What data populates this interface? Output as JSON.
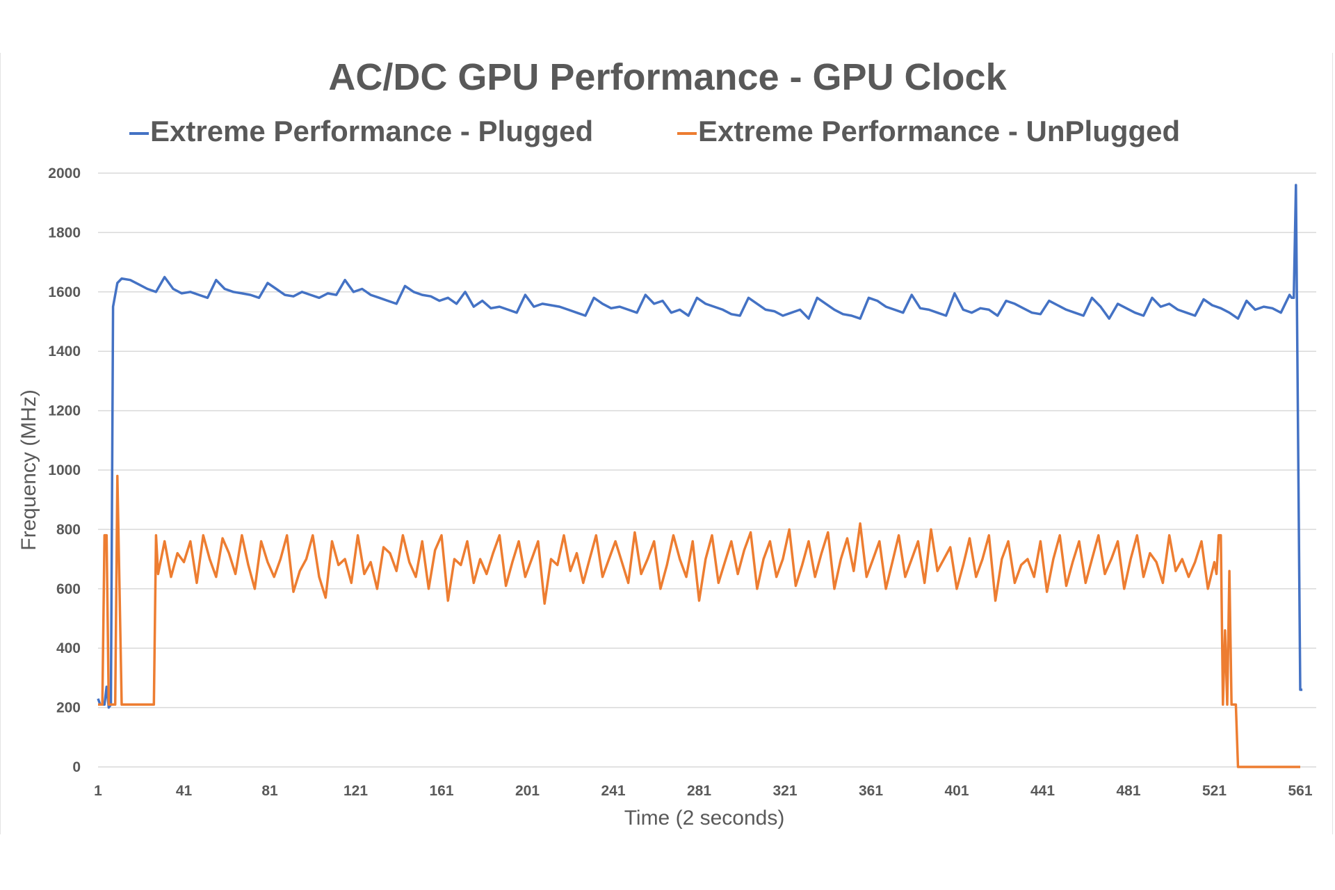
{
  "chart_data": {
    "type": "line",
    "title": "AC/DC GPU Performance - GPU Clock",
    "xlabel": "Time (2 seconds)",
    "ylabel": "Frequency (MHz)",
    "xlim": [
      1,
      562
    ],
    "ylim": [
      0,
      2000
    ],
    "y_ticks": [
      0,
      200,
      400,
      600,
      800,
      1000,
      1200,
      1400,
      1600,
      1800,
      2000
    ],
    "x_ticks": [
      1,
      41,
      81,
      121,
      161,
      201,
      241,
      281,
      321,
      361,
      401,
      441,
      481,
      521,
      561
    ],
    "grid": true,
    "legend_position": "top",
    "series": [
      {
        "name": "Extreme Performance - Plugged",
        "color": "#4472C4",
        "head": [
          [
            1,
            230
          ],
          [
            2,
            210
          ],
          [
            4,
            210
          ],
          [
            5,
            270
          ],
          [
            6,
            200
          ],
          [
            7,
            210
          ],
          [
            8,
            1550
          ],
          [
            10,
            1630
          ],
          [
            12,
            1645
          ]
        ],
        "sampled": {
          "x_start": 16,
          "x_step": 4,
          "values": [
            1640,
            1625,
            1610,
            1600,
            1650,
            1610,
            1595,
            1600,
            1590,
            1580,
            1640,
            1610,
            1600,
            1595,
            1590,
            1580,
            1630,
            1610,
            1590,
            1585,
            1600,
            1590,
            1580,
            1595,
            1590,
            1640,
            1600,
            1610,
            1590,
            1580,
            1570,
            1560,
            1620,
            1600,
            1590,
            1585,
            1570,
            1580,
            1560,
            1600,
            1550,
            1570,
            1545,
            1550,
            1540,
            1530,
            1590,
            1550,
            1560,
            1555,
            1550,
            1540,
            1530,
            1520,
            1580,
            1560,
            1545,
            1550,
            1540,
            1530,
            1590,
            1560,
            1570,
            1530,
            1540,
            1520,
            1580,
            1560,
            1550,
            1540,
            1525,
            1520,
            1580,
            1560,
            1540,
            1535,
            1520,
            1530,
            1540,
            1510,
            1580,
            1560,
            1540,
            1525,
            1520,
            1510,
            1580,
            1570,
            1550,
            1540,
            1530,
            1590,
            1545,
            1540,
            1530,
            1520,
            1595,
            1540,
            1530,
            1545,
            1540,
            1520,
            1570,
            1560,
            1545,
            1530,
            1525,
            1570,
            1555,
            1540,
            1530,
            1520,
            1580,
            1550,
            1510,
            1560,
            1545,
            1530,
            1520,
            1580,
            1550,
            1560,
            1540,
            1530,
            1520,
            1575,
            1555,
            1545,
            1530,
            1510,
            1570,
            1540,
            1550,
            1545,
            1530,
            1590
          ]
        },
        "tail": [
          [
            557,
            1580
          ],
          [
            558,
            1580
          ],
          [
            559,
            1960
          ],
          [
            561,
            260
          ],
          [
            562,
            260
          ]
        ]
      },
      {
        "name": "Extreme Performance - UnPlugged",
        "color": "#ED7D31",
        "head": [
          [
            1,
            210
          ],
          [
            3,
            210
          ],
          [
            4,
            780
          ],
          [
            5,
            780
          ],
          [
            6,
            210
          ],
          [
            9,
            210
          ],
          [
            10,
            980
          ],
          [
            11,
            600
          ],
          [
            12,
            210
          ],
          [
            27,
            210
          ],
          [
            28,
            780
          ]
        ],
        "sampled": {
          "x_start": 29,
          "x_step": 3,
          "values": [
            650,
            760,
            640,
            720,
            690,
            760,
            620,
            780,
            700,
            640,
            770,
            720,
            650,
            780,
            680,
            600,
            760,
            690,
            640,
            700,
            780,
            590,
            660,
            700,
            780,
            640,
            570,
            760,
            680,
            700,
            620,
            780,
            650,
            690,
            600,
            740,
            720,
            660,
            780,
            690,
            640,
            760,
            600,
            730,
            780,
            560,
            700,
            680,
            760,
            620,
            700,
            650,
            720,
            780,
            610,
            690,
            760,
            640,
            700,
            760,
            550,
            700,
            680,
            780,
            660,
            720,
            620,
            700,
            780,
            640,
            700,
            760,
            690,
            620,
            790,
            650,
            700,
            760,
            600,
            680,
            780,
            700,
            640,
            760,
            560,
            700,
            780,
            620,
            690,
            760,
            650,
            730,
            790,
            600,
            700,
            760,
            640,
            700,
            800,
            610,
            680,
            760,
            640,
            720,
            790,
            600,
            700,
            770,
            660,
            820,
            640,
            700,
            760,
            600,
            690,
            780,
            640,
            700,
            760,
            620,
            800,
            660,
            700,
            740,
            600,
            680,
            770,
            640,
            700,
            780,
            560,
            700,
            760,
            620,
            680,
            700,
            640,
            760,
            590,
            700,
            780,
            610,
            690,
            760,
            620,
            700,
            780,
            650,
            700,
            760,
            600,
            700,
            780,
            640,
            720,
            690,
            620,
            780,
            660,
            700,
            640,
            690,
            760,
            600,
            690
          ]
        },
        "tail": [
          [
            522,
            650
          ],
          [
            523,
            780
          ],
          [
            524,
            780
          ],
          [
            525,
            210
          ],
          [
            526,
            460
          ],
          [
            527,
            210
          ],
          [
            528,
            660
          ],
          [
            529,
            210
          ],
          [
            531,
            210
          ],
          [
            532,
            0
          ],
          [
            561,
            0
          ]
        ]
      }
    ]
  }
}
